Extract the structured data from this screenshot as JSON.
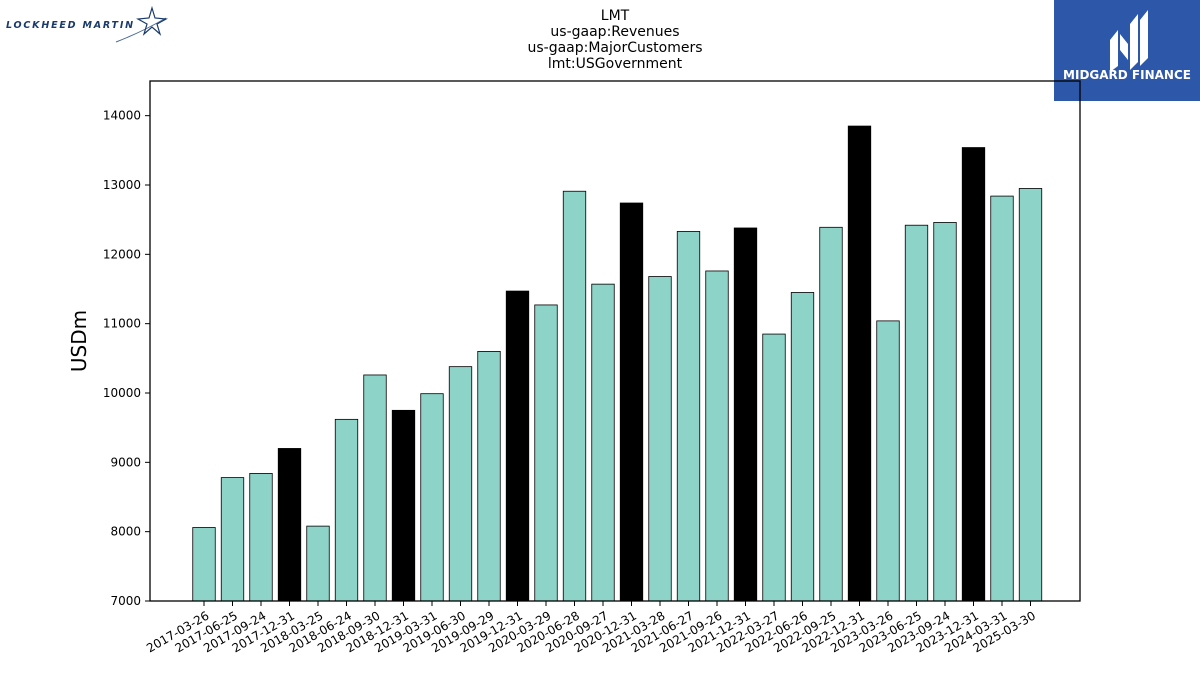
{
  "brand": {
    "left_logo_text": "LOCKHEED MARTIN",
    "right_logo_text": "MIDGARD FINANCE",
    "right_logo_color": "#2d57a8"
  },
  "chart_data": {
    "type": "bar",
    "title_lines": [
      "LMT",
      "us-gaap:Revenues",
      "us-gaap:MajorCustomers",
      "lmt:USGovernment"
    ],
    "xlabel": "",
    "ylabel": "USDm",
    "ylim": [
      7000,
      14500
    ],
    "yticks": [
      7000,
      8000,
      9000,
      10000,
      11000,
      12000,
      13000,
      14000
    ],
    "grid": false,
    "colors": {
      "quarter": "#8dd3c7",
      "year_end": "#000000",
      "edge": "#000000"
    },
    "categories": [
      "2017-03-26",
      "2017-06-25",
      "2017-09-24",
      "2017-12-31",
      "2018-03-25",
      "2018-06-24",
      "2018-09-30",
      "2018-12-31",
      "2019-03-31",
      "2019-06-30",
      "2019-09-29",
      "2019-12-31",
      "2020-03-29",
      "2020-06-28",
      "2020-09-27",
      "2020-12-31",
      "2021-03-28",
      "2021-06-27",
      "2021-09-26",
      "2021-12-31",
      "2022-03-27",
      "2022-06-26",
      "2022-09-25",
      "2022-12-31",
      "2023-03-26",
      "2023-06-25",
      "2023-09-24",
      "2023-12-31",
      "2024-03-31",
      "2025-03-30"
    ],
    "values": [
      8060,
      8780,
      8840,
      9200,
      8080,
      9620,
      10260,
      9750,
      9990,
      10380,
      10600,
      11470,
      11270,
      12910,
      11570,
      12740,
      11680,
      12330,
      11760,
      12380,
      10850,
      11450,
      12390,
      13850,
      11040,
      12420,
      12460,
      13540,
      12840,
      12950
    ],
    "year_end_flags": [
      false,
      false,
      false,
      true,
      false,
      false,
      false,
      true,
      false,
      false,
      false,
      true,
      false,
      false,
      false,
      true,
      false,
      false,
      false,
      true,
      false,
      false,
      false,
      true,
      false,
      false,
      false,
      true,
      false,
      false
    ]
  }
}
